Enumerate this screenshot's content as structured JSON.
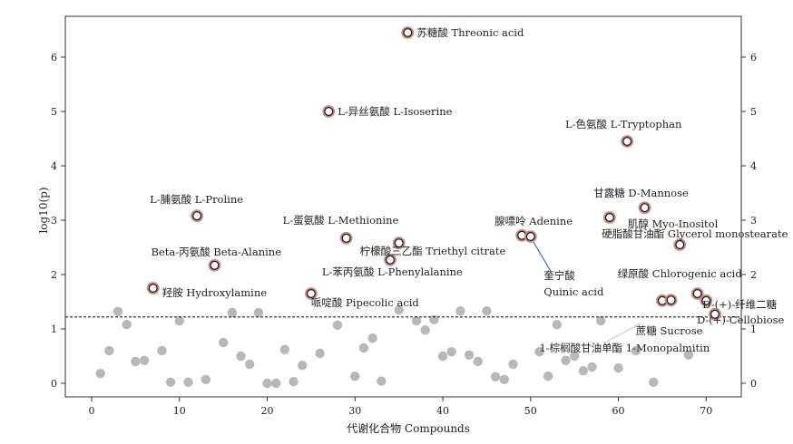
{
  "chart_data": {
    "type": "scatter",
    "xlabel": "代谢化合物 Compounds",
    "ylabel": "log10(p)",
    "xlim": [
      -3,
      74
    ],
    "ylim": [
      -0.25,
      6.75
    ],
    "x_ticks": [
      0,
      10,
      20,
      30,
      40,
      50,
      60,
      70
    ],
    "y_ticks": [
      0,
      1,
      2,
      3,
      4,
      5,
      6
    ],
    "grid": false,
    "threshold": 1.22,
    "colors": {
      "nonsig": "#b8b8b8",
      "sig_stroke": "#1a1a1a",
      "sig_fill": "#ffffff",
      "sig_halo": "#c98a84",
      "leader": "#3a6fb0",
      "frame": "#333333"
    },
    "nonsignificant_points": [
      [
        1,
        0.18
      ],
      [
        2,
        0.6
      ],
      [
        3,
        1.32
      ],
      [
        4,
        1.08
      ],
      [
        5,
        0.4
      ],
      [
        6,
        0.42
      ],
      [
        8,
        0.6
      ],
      [
        9,
        0.02
      ],
      [
        10,
        1.15
      ],
      [
        11,
        0.02
      ],
      [
        13,
        0.07
      ],
      [
        15,
        0.75
      ],
      [
        16,
        1.3
      ],
      [
        17,
        0.5
      ],
      [
        18,
        0.35
      ],
      [
        19,
        1.3
      ],
      [
        20,
        0.0
      ],
      [
        21,
        0.0
      ],
      [
        22,
        0.62
      ],
      [
        23,
        0.03
      ],
      [
        24,
        0.33
      ],
      [
        26,
        0.55
      ],
      [
        28,
        1.07
      ],
      [
        30,
        0.13
      ],
      [
        31,
        0.65
      ],
      [
        32,
        0.83
      ],
      [
        33,
        0.04
      ],
      [
        35,
        1.35
      ],
      [
        37,
        1.15
      ],
      [
        38,
        0.98
      ],
      [
        39,
        1.17
      ],
      [
        40,
        0.5
      ],
      [
        41,
        0.58
      ],
      [
        42,
        1.33
      ],
      [
        43,
        0.52
      ],
      [
        44,
        0.4
      ],
      [
        45,
        1.33
      ],
      [
        46,
        0.12
      ],
      [
        47,
        0.07
      ],
      [
        48,
        0.35
      ],
      [
        51,
        0.58
      ],
      [
        52,
        0.13
      ],
      [
        53,
        1.08
      ],
      [
        54,
        0.42
      ],
      [
        55,
        0.5
      ],
      [
        56,
        0.23
      ],
      [
        57,
        0.3
      ],
      [
        58,
        1.15
      ],
      [
        60,
        0.28
      ],
      [
        62,
        0.6
      ],
      [
        64,
        0.02
      ],
      [
        68,
        0.52
      ]
    ],
    "significant_points": [
      {
        "x": 36,
        "y": 6.45,
        "label": "苏糖酸 Threonic acid"
      },
      {
        "x": 27,
        "y": 5.0,
        "label": "L-异丝氨酸 L-Isoserine"
      },
      {
        "x": 61,
        "y": 4.45,
        "label": "L-色氨酸 L-Tryptophan"
      },
      {
        "x": 63,
        "y": 3.23,
        "label": "甘露糖 D-Mannose"
      },
      {
        "x": 59,
        "y": 3.05,
        "label": "肌醇 Myo-Inositol"
      },
      {
        "x": 12,
        "y": 3.08,
        "label": "L-脯氨酸 L-Proline"
      },
      {
        "x": 29,
        "y": 2.67,
        "label": "L-蛋氨酸 L-Methionine"
      },
      {
        "x": 49,
        "y": 2.72,
        "label": "腺嘌呤 Adenine"
      },
      {
        "x": 50,
        "y": 2.7,
        "label": ""
      },
      {
        "x": 35,
        "y": 2.58,
        "label": "柠檬酸三乙酯 Triethyl citrate"
      },
      {
        "x": 67,
        "y": 2.55,
        "label": "硬脂酸甘油酯 Glycerol monostearate"
      },
      {
        "x": 34,
        "y": 2.27,
        "label": ""
      },
      {
        "x": 14,
        "y": 2.17,
        "label": "Beta-丙氨酸 Beta-Alanine"
      },
      {
        "x": 7,
        "y": 1.75,
        "label": "羟胺 Hydroxylamine"
      },
      {
        "x": 25,
        "y": 1.65,
        "label": "L-苯丙氨酸 L-Phenylalanine"
      },
      {
        "x": 69,
        "y": 1.65,
        "label": "绿原酸 Chlorogenic acid"
      },
      {
        "x": 70,
        "y": 1.52,
        "label": "D-(+)-纤维二糖"
      },
      {
        "x": 65,
        "y": 1.52,
        "label": ""
      },
      {
        "x": 66,
        "y": 1.53,
        "label": ""
      },
      {
        "x": 71,
        "y": 1.27,
        "label": "D-(+)-Cellobiose"
      }
    ],
    "free_labels": [
      {
        "text": "奎宁酸",
        "x": 51.5,
        "y": 1.92
      },
      {
        "text": "Quinic acid",
        "x": 51.5,
        "y": 1.62
      },
      {
        "text": "哌啶酸 Pipecolic acid",
        "x": 25,
        "y": 1.42
      },
      {
        "text": "蔗糖 Sucrose",
        "x": 62,
        "y": 0.9
      },
      {
        "text": "1-棕榈酸甘油单酯 1-Monopalmitin",
        "x": 51,
        "y": 0.58
      }
    ]
  }
}
